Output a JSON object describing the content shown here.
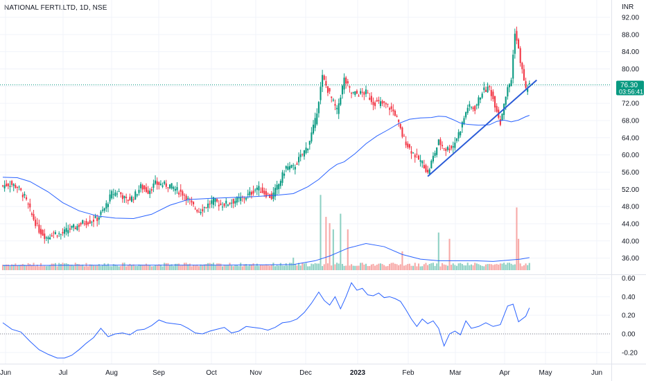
{
  "header": {
    "symbol_line": "NATIONAL FERTI.LTD, 1D, NSE",
    "currency": "INR"
  },
  "price_badge": {
    "price": "76.30",
    "countdown": "03:56:41",
    "color": "#089981"
  },
  "colors": {
    "up": "#089981",
    "down": "#f23645",
    "ma": "#2962ff",
    "trendline": "#2a5bd7",
    "volume_up": "#8fd1c4",
    "volume_down": "#f7a9a7",
    "grid": "#f0f3fa",
    "oscillator": "#2962ff"
  },
  "chart_data": [
    {
      "type": "candlestick",
      "name": "price",
      "ylim": [
        34,
        93
      ],
      "y_ticks": [
        "92.00",
        "88.00",
        "84.00",
        "80.00",
        "76.00",
        "72.00",
        "68.00",
        "64.00",
        "60.00",
        "56.00",
        "52.00",
        "48.00",
        "44.00",
        "40.00",
        "36.00"
      ],
      "x_ticks": [
        "Jun",
        "Jul",
        "Aug",
        "Sep",
        "Oct",
        "Nov",
        "Dec",
        "2023",
        "Feb",
        "Mar",
        "Apr",
        "May",
        "Jun"
      ],
      "last_price": 76.3,
      "anchors": [
        [
          0,
          52.8
        ],
        [
          4,
          53.3
        ],
        [
          8,
          52.6
        ],
        [
          12,
          50.2
        ],
        [
          16,
          46.0
        ],
        [
          20,
          42.5
        ],
        [
          24,
          40.8
        ],
        [
          28,
          41.9
        ],
        [
          32,
          41.5
        ],
        [
          36,
          42.6
        ],
        [
          40,
          43.2
        ],
        [
          44,
          44.2
        ],
        [
          48,
          44.6
        ],
        [
          52,
          45.2
        ],
        [
          56,
          47.5
        ],
        [
          60,
          51.0
        ],
        [
          64,
          51.4
        ],
        [
          68,
          49.4
        ],
        [
          72,
          50.2
        ],
        [
          76,
          52.6
        ],
        [
          80,
          51.6
        ],
        [
          84,
          53.3
        ],
        [
          88,
          53.1
        ],
        [
          92,
          52.9
        ],
        [
          96,
          51.8
        ],
        [
          100,
          50.8
        ],
        [
          104,
          48.4
        ],
        [
          108,
          47.0
        ],
        [
          112,
          48.1
        ],
        [
          116,
          49.4
        ],
        [
          120,
          48.4
        ],
        [
          124,
          48.8
        ],
        [
          128,
          49.4
        ],
        [
          132,
          49.8
        ],
        [
          136,
          50.9
        ],
        [
          140,
          52.4
        ],
        [
          144,
          51.2
        ],
        [
          148,
          50.1
        ],
        [
          152,
          53.2
        ],
        [
          156,
          57.2
        ],
        [
          160,
          57.0
        ],
        [
          164,
          59.6
        ],
        [
          168,
          62.1
        ],
        [
          172,
          67.8
        ],
        [
          176,
          78.1
        ],
        [
          180,
          74.1
        ],
        [
          184,
          70.2
        ],
        [
          188,
          77.6
        ],
        [
          192,
          74.3
        ],
        [
          196,
          74.2
        ],
        [
          200,
          74.5
        ],
        [
          204,
          72.2
        ],
        [
          208,
          72.0
        ],
        [
          212,
          71.4
        ],
        [
          216,
          69.6
        ],
        [
          220,
          64.5
        ],
        [
          224,
          61.5
        ],
        [
          228,
          59.4
        ],
        [
          232,
          57.6
        ],
        [
          234,
          55.6
        ],
        [
          236,
          58.3
        ],
        [
          240,
          63.0
        ],
        [
          244,
          61.3
        ],
        [
          248,
          62.1
        ],
        [
          252,
          66.0
        ],
        [
          256,
          71.2
        ],
        [
          260,
          70.8
        ],
        [
          264,
          74.8
        ],
        [
          268,
          75.6
        ],
        [
          270,
          73.0
        ],
        [
          272,
          70.6
        ],
        [
          274,
          67.4
        ],
        [
          276,
          72.3
        ],
        [
          278,
          75.3
        ],
        [
          280,
          77.6
        ],
        [
          282,
          88.8
        ],
        [
          284,
          84.3
        ],
        [
          286,
          79.5
        ],
        [
          288,
          75.2
        ],
        [
          290,
          76.3
        ]
      ],
      "moving_average": [
        [
          0,
          54.8
        ],
        [
          8,
          54.7
        ],
        [
          15,
          53.8
        ],
        [
          25,
          51.4
        ],
        [
          33,
          48.9
        ],
        [
          42,
          47.0
        ],
        [
          52,
          45.8
        ],
        [
          62,
          45.3
        ],
        [
          72,
          45.2
        ],
        [
          82,
          46.2
        ],
        [
          92,
          48.3
        ],
        [
          102,
          49.6
        ],
        [
          114,
          49.9
        ],
        [
          126,
          50.1
        ],
        [
          138,
          50.3
        ],
        [
          150,
          50.6
        ],
        [
          160,
          51.0
        ],
        [
          168,
          52.6
        ],
        [
          174,
          54.3
        ],
        [
          180,
          56.6
        ],
        [
          184,
          57.8
        ],
        [
          188,
          58.4
        ],
        [
          194,
          60.3
        ],
        [
          200,
          62.6
        ],
        [
          206,
          64.4
        ],
        [
          212,
          65.8
        ],
        [
          218,
          67.3
        ],
        [
          224,
          68.3
        ],
        [
          230,
          68.6
        ],
        [
          236,
          68.7
        ],
        [
          240,
          69.0
        ],
        [
          244,
          68.9
        ],
        [
          248,
          68.2
        ],
        [
          252,
          67.4
        ],
        [
          256,
          67.1
        ],
        [
          262,
          66.9
        ],
        [
          268,
          67.0
        ],
        [
          272,
          67.8
        ],
        [
          276,
          68.1
        ],
        [
          280,
          67.7
        ],
        [
          284,
          68.1
        ],
        [
          288,
          68.9
        ],
        [
          290,
          69.2
        ]
      ],
      "trendline": [
        [
          234,
          55.0
        ],
        [
          294,
          77.4
        ]
      ],
      "volume_max_share": 0.24,
      "volume_spikes": [
        [
          175,
          0.24
        ],
        [
          178,
          0.17
        ],
        [
          180,
          0.15
        ],
        [
          182,
          0.13
        ],
        [
          186,
          0.18
        ],
        [
          190,
          0.13
        ],
        [
          283,
          0.2
        ],
        [
          284,
          0.1
        ],
        [
          246,
          0.1
        ],
        [
          220,
          0.06
        ],
        [
          240,
          0.12
        ],
        [
          160,
          0.04
        ]
      ],
      "volume_ma": [
        [
          0,
          0.015
        ],
        [
          60,
          0.016
        ],
        [
          120,
          0.016
        ],
        [
          160,
          0.018
        ],
        [
          172,
          0.03
        ],
        [
          180,
          0.045
        ],
        [
          190,
          0.07
        ],
        [
          200,
          0.085
        ],
        [
          210,
          0.075
        ],
        [
          220,
          0.05
        ],
        [
          230,
          0.035
        ],
        [
          240,
          0.03
        ],
        [
          260,
          0.03
        ],
        [
          270,
          0.028
        ],
        [
          285,
          0.035
        ],
        [
          290,
          0.04
        ]
      ]
    },
    {
      "type": "line",
      "name": "oscillator",
      "ylim": [
        -0.32,
        0.66
      ],
      "y_ticks": [
        "0.60",
        "0.40",
        "0.20",
        "0.00",
        "-0.20"
      ],
      "zero_line": 0.0,
      "values": [
        [
          0,
          0.12
        ],
        [
          5,
          0.05
        ],
        [
          10,
          0.02
        ],
        [
          15,
          -0.08
        ],
        [
          20,
          -0.17
        ],
        [
          25,
          -0.22
        ],
        [
          30,
          -0.26
        ],
        [
          34,
          -0.26
        ],
        [
          38,
          -0.23
        ],
        [
          42,
          -0.17
        ],
        [
          46,
          -0.1
        ],
        [
          50,
          -0.04
        ],
        [
          54,
          0.06
        ],
        [
          58,
          -0.03
        ],
        [
          62,
          0.0
        ],
        [
          66,
          0.01
        ],
        [
          70,
          -0.01
        ],
        [
          74,
          0.04
        ],
        [
          78,
          0.05
        ],
        [
          82,
          0.09
        ],
        [
          86,
          0.15
        ],
        [
          90,
          0.12
        ],
        [
          94,
          0.11
        ],
        [
          98,
          0.1
        ],
        [
          102,
          0.06
        ],
        [
          106,
          0.01
        ],
        [
          110,
          0.0
        ],
        [
          114,
          0.03
        ],
        [
          118,
          0.05
        ],
        [
          122,
          0.07
        ],
        [
          126,
          0.01
        ],
        [
          130,
          0.03
        ],
        [
          134,
          0.08
        ],
        [
          138,
          0.07
        ],
        [
          142,
          0.06
        ],
        [
          146,
          0.04
        ],
        [
          150,
          0.07
        ],
        [
          154,
          0.12
        ],
        [
          158,
          0.13
        ],
        [
          162,
          0.16
        ],
        [
          166,
          0.23
        ],
        [
          170,
          0.33
        ],
        [
          174,
          0.45
        ],
        [
          177,
          0.36
        ],
        [
          180,
          0.31
        ],
        [
          183,
          0.4
        ],
        [
          186,
          0.27
        ],
        [
          189,
          0.4
        ],
        [
          192,
          0.55
        ],
        [
          195,
          0.47
        ],
        [
          198,
          0.49
        ],
        [
          201,
          0.42
        ],
        [
          204,
          0.41
        ],
        [
          207,
          0.44
        ],
        [
          210,
          0.39
        ],
        [
          213,
          0.4
        ],
        [
          216,
          0.38
        ],
        [
          219,
          0.35
        ],
        [
          222,
          0.26
        ],
        [
          225,
          0.16
        ],
        [
          228,
          0.08
        ],
        [
          231,
          0.16
        ],
        [
          234,
          0.11
        ],
        [
          237,
          0.14
        ],
        [
          240,
          0.06
        ],
        [
          243,
          -0.13
        ],
        [
          246,
          0.0
        ],
        [
          249,
          0.03
        ],
        [
          252,
          -0.01
        ],
        [
          255,
          0.14
        ],
        [
          258,
          0.06
        ],
        [
          262,
          0.08
        ],
        [
          266,
          0.12
        ],
        [
          270,
          0.08
        ],
        [
          274,
          0.1
        ],
        [
          278,
          0.3
        ],
        [
          281,
          0.32
        ],
        [
          284,
          0.13
        ],
        [
          288,
          0.19
        ],
        [
          290,
          0.28
        ]
      ]
    }
  ]
}
